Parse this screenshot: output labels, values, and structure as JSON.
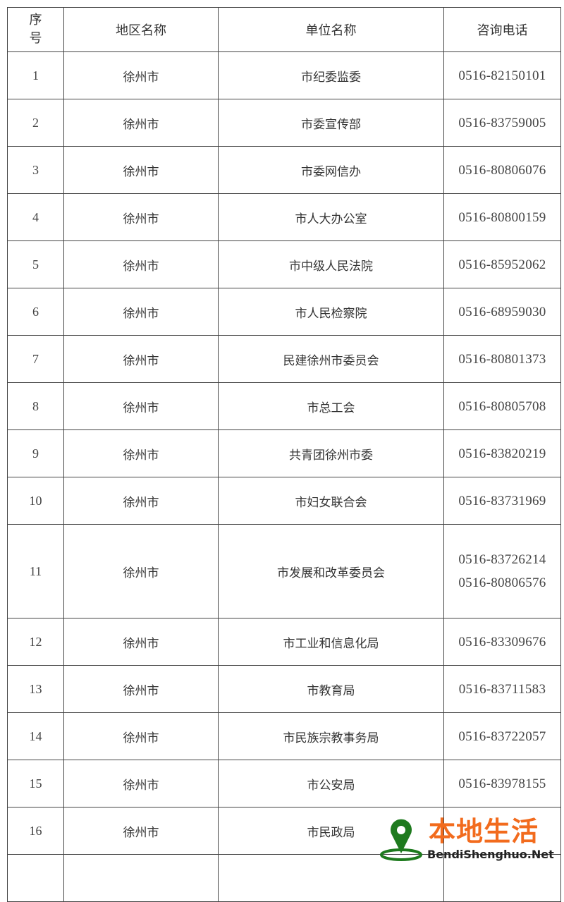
{
  "table": {
    "headers": {
      "index": "序号",
      "region": "地区名称",
      "unit": "单位名称",
      "phone": "咨询电话"
    },
    "rows": [
      {
        "index": "1",
        "region": "徐州市",
        "unit": "市纪委监委",
        "phones": [
          "0516-82150101"
        ]
      },
      {
        "index": "2",
        "region": "徐州市",
        "unit": "市委宣传部",
        "phones": [
          "0516-83759005"
        ]
      },
      {
        "index": "3",
        "region": "徐州市",
        "unit": "市委网信办",
        "phones": [
          "0516-80806076"
        ]
      },
      {
        "index": "4",
        "region": "徐州市",
        "unit": "市人大办公室",
        "phones": [
          "0516-80800159"
        ]
      },
      {
        "index": "5",
        "region": "徐州市",
        "unit": "市中级人民法院",
        "phones": [
          "0516-85952062"
        ]
      },
      {
        "index": "6",
        "region": "徐州市",
        "unit": "市人民检察院",
        "phones": [
          "0516-68959030"
        ]
      },
      {
        "index": "7",
        "region": "徐州市",
        "unit": "民建徐州市委员会",
        "phones": [
          "0516-80801373"
        ]
      },
      {
        "index": "8",
        "region": "徐州市",
        "unit": "市总工会",
        "phones": [
          "0516-80805708"
        ]
      },
      {
        "index": "9",
        "region": "徐州市",
        "unit": "共青团徐州市委",
        "phones": [
          "0516-83820219"
        ]
      },
      {
        "index": "10",
        "region": "徐州市",
        "unit": "市妇女联合会",
        "phones": [
          "0516-83731969"
        ]
      },
      {
        "index": "11",
        "region": "徐州市",
        "unit": "市发展和改革委员会",
        "phones": [
          "0516-83726214",
          "0516-80806576"
        ]
      },
      {
        "index": "12",
        "region": "徐州市",
        "unit": "市工业和信息化局",
        "phones": [
          "0516-83309676"
        ]
      },
      {
        "index": "13",
        "region": "徐州市",
        "unit": "市教育局",
        "phones": [
          "0516-83711583"
        ]
      },
      {
        "index": "14",
        "region": "徐州市",
        "unit": "市民族宗教事务局",
        "phones": [
          "0516-83722057"
        ]
      },
      {
        "index": "15",
        "region": "徐州市",
        "unit": "市公安局",
        "phones": [
          "0516-83978155"
        ]
      },
      {
        "index": "16",
        "region": "徐州市",
        "unit": "市民政局",
        "phones": []
      }
    ]
  },
  "watermark": {
    "title": "本地生活",
    "subtitle": "BendiShenghuo.Net",
    "icon": "map-pin-icon",
    "title_color": "#f26b1d",
    "icon_color": "#1e7a1e"
  }
}
